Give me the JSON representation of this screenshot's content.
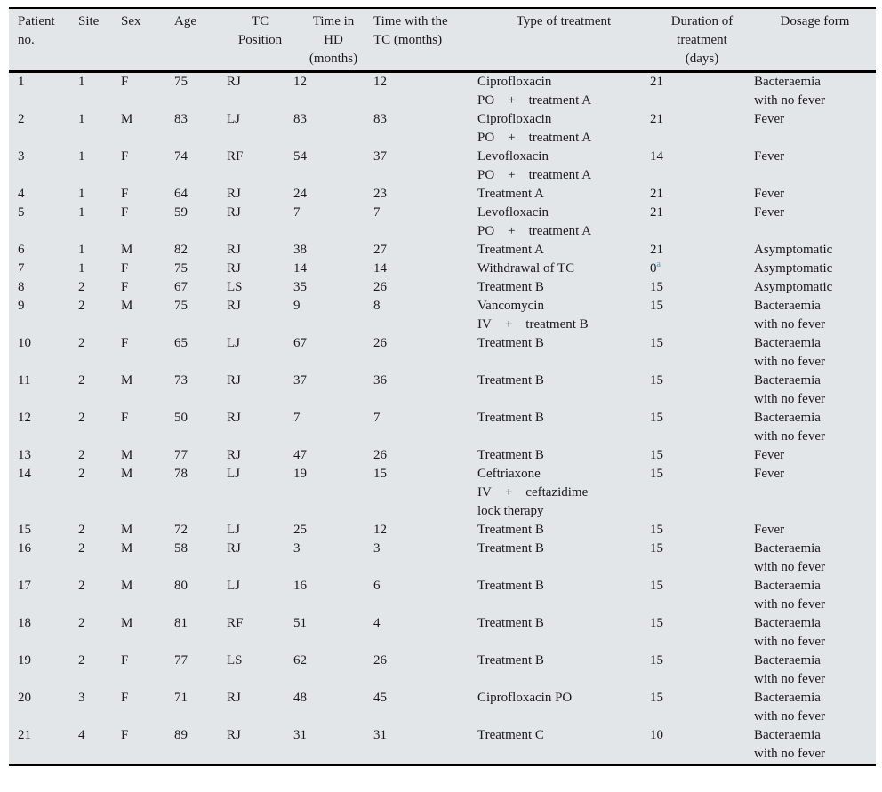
{
  "colors": {
    "table_background": "#e2e6e9",
    "rule": "#000000",
    "text": "#1a1a1a",
    "footnote_accent": "#4aa0c8"
  },
  "table": {
    "columns": [
      {
        "key": "patient_no",
        "header_lines": [
          "Patient",
          "no."
        ],
        "header_align": "left"
      },
      {
        "key": "site",
        "header_lines": [
          "Site"
        ],
        "header_align": "left"
      },
      {
        "key": "sex",
        "header_lines": [
          "Sex"
        ],
        "header_align": "left"
      },
      {
        "key": "age",
        "header_lines": [
          "Age"
        ],
        "header_align": "left"
      },
      {
        "key": "tc_position",
        "header_lines": [
          "TC",
          "Position"
        ],
        "header_align": "center"
      },
      {
        "key": "time_in_hd",
        "header_lines": [
          "Time in",
          "HD",
          "(months)"
        ],
        "header_align": "center"
      },
      {
        "key": "time_with_tc",
        "header_lines": [
          "Time with the",
          "TC (months)"
        ],
        "header_align": "left"
      },
      {
        "key": "treatment",
        "header_lines": [
          "Type of treatment"
        ],
        "header_align": "center"
      },
      {
        "key": "duration",
        "header_lines": [
          "Duration of",
          "treatment",
          "(days)"
        ],
        "header_align": "center"
      },
      {
        "key": "dosage",
        "header_lines": [
          "Dosage form"
        ],
        "header_align": "center"
      }
    ],
    "rows": [
      {
        "patient_no": "1",
        "site": "1",
        "sex": "F",
        "age": "75",
        "tc_position": "RJ",
        "time_in_hd": "12",
        "time_with_tc": "12",
        "treatment": [
          "Ciprofloxacin",
          "PO + treatment A"
        ],
        "duration": "21",
        "dosage": [
          "Bacteraemia",
          "with no fever"
        ]
      },
      {
        "patient_no": "2",
        "site": "1",
        "sex": "M",
        "age": "83",
        "tc_position": "LJ",
        "time_in_hd": "83",
        "time_with_tc": "83",
        "treatment": [
          "Ciprofloxacin",
          "PO + treatment A"
        ],
        "duration": "21",
        "dosage": "Fever"
      },
      {
        "patient_no": "3",
        "site": "1",
        "sex": "F",
        "age": "74",
        "tc_position": "RF",
        "time_in_hd": "54",
        "time_with_tc": "37",
        "treatment": [
          "Levofloxacin",
          "PO + treatment A"
        ],
        "duration": "14",
        "dosage": "Fever"
      },
      {
        "patient_no": "4",
        "site": "1",
        "sex": "F",
        "age": "64",
        "tc_position": "RJ",
        "time_in_hd": "24",
        "time_with_tc": "23",
        "treatment": "Treatment A",
        "duration": "21",
        "dosage": "Fever"
      },
      {
        "patient_no": "5",
        "site": "1",
        "sex": "F",
        "age": "59",
        "tc_position": "RJ",
        "time_in_hd": "7",
        "time_with_tc": "7",
        "treatment": [
          "Levofloxacin",
          "PO + treatment A"
        ],
        "duration": "21",
        "dosage": "Fever"
      },
      {
        "patient_no": "6",
        "site": "1",
        "sex": "M",
        "age": "82",
        "tc_position": "RJ",
        "time_in_hd": "38",
        "time_with_tc": "27",
        "treatment": "Treatment A",
        "duration": "21",
        "dosage": "Asymptomatic"
      },
      {
        "patient_no": "7",
        "site": "1",
        "sex": "F",
        "age": "75",
        "tc_position": "RJ",
        "time_in_hd": "14",
        "time_with_tc": "14",
        "treatment": "Withdrawal of TC",
        "duration": "0",
        "duration_sup": "a",
        "dosage": "Asymptomatic"
      },
      {
        "patient_no": "8",
        "site": "2",
        "sex": "F",
        "age": "67",
        "tc_position": "LS",
        "time_in_hd": "35",
        "time_with_tc": "26",
        "treatment": "Treatment B",
        "duration": "15",
        "dosage": "Asymptomatic"
      },
      {
        "patient_no": "9",
        "site": "2",
        "sex": "M",
        "age": "75",
        "tc_position": "RJ",
        "time_in_hd": "9",
        "time_with_tc": "8",
        "treatment": [
          "Vancomycin",
          "IV + treatment B"
        ],
        "duration": "15",
        "dosage": [
          "Bacteraemia",
          "with no fever"
        ]
      },
      {
        "patient_no": "10",
        "site": "2",
        "sex": "F",
        "age": "65",
        "tc_position": "LJ",
        "time_in_hd": "67",
        "time_with_tc": "26",
        "treatment": "Treatment B",
        "duration": "15",
        "dosage": [
          "Bacteraemia",
          "with no fever"
        ]
      },
      {
        "patient_no": "11",
        "site": "2",
        "sex": "M",
        "age": "73",
        "tc_position": "RJ",
        "time_in_hd": "37",
        "time_with_tc": "36",
        "treatment": "Treatment B",
        "duration": "15",
        "dosage": [
          "Bacteraemia",
          "with no fever"
        ]
      },
      {
        "patient_no": "12",
        "site": "2",
        "sex": "F",
        "age": "50",
        "tc_position": "RJ",
        "time_in_hd": "7",
        "time_with_tc": "7",
        "treatment": "Treatment B",
        "duration": "15",
        "dosage": [
          "Bacteraemia",
          "with no fever"
        ]
      },
      {
        "patient_no": "13",
        "site": "2",
        "sex": "M",
        "age": "77",
        "tc_position": "RJ",
        "time_in_hd": "47",
        "time_with_tc": "26",
        "treatment": "Treatment B",
        "duration": "15",
        "dosage": "Fever"
      },
      {
        "patient_no": "14",
        "site": "2",
        "sex": "M",
        "age": "78",
        "tc_position": "LJ",
        "time_in_hd": "19",
        "time_with_tc": "15",
        "treatment": [
          "Ceftriaxone",
          "IV + ceftazidime",
          "lock therapy"
        ],
        "duration": "15",
        "dosage": "Fever"
      },
      {
        "patient_no": "15",
        "site": "2",
        "sex": "M",
        "age": "72",
        "tc_position": "LJ",
        "time_in_hd": "25",
        "time_with_tc": "12",
        "treatment": "Treatment B",
        "duration": "15",
        "dosage": "Fever"
      },
      {
        "patient_no": "16",
        "site": "2",
        "sex": "M",
        "age": "58",
        "tc_position": "RJ",
        "time_in_hd": "3",
        "time_with_tc": "3",
        "treatment": "Treatment B",
        "duration": "15",
        "dosage": [
          "Bacteraemia",
          "with no fever"
        ]
      },
      {
        "patient_no": "17",
        "site": "2",
        "sex": "M",
        "age": "80",
        "tc_position": "LJ",
        "time_in_hd": "16",
        "time_with_tc": "6",
        "treatment": "Treatment B",
        "duration": "15",
        "dosage": [
          "Bacteraemia",
          "with no fever"
        ]
      },
      {
        "patient_no": "18",
        "site": "2",
        "sex": "M",
        "age": "81",
        "tc_position": "RF",
        "time_in_hd": "51",
        "time_with_tc": "4",
        "treatment": "Treatment B",
        "duration": "15",
        "dosage": [
          "Bacteraemia",
          "with no fever"
        ]
      },
      {
        "patient_no": "19",
        "site": "2",
        "sex": "F",
        "age": "77",
        "tc_position": "LS",
        "time_in_hd": "62",
        "time_with_tc": "26",
        "treatment": "Treatment B",
        "duration": "15",
        "dosage": [
          "Bacteraemia",
          "with no fever"
        ]
      },
      {
        "patient_no": "20",
        "site": "3",
        "sex": "F",
        "age": "71",
        "tc_position": "RJ",
        "time_in_hd": "48",
        "time_with_tc": "45",
        "treatment": "Ciprofloxacin PO",
        "duration": "15",
        "dosage": [
          "Bacteraemia",
          "with no fever"
        ]
      },
      {
        "patient_no": "21",
        "site": "4",
        "sex": "F",
        "age": "89",
        "tc_position": "RJ",
        "time_in_hd": "31",
        "time_with_tc": "31",
        "treatment": "Treatment C",
        "duration": "10",
        "dosage": [
          "Bacteraemia",
          "with no fever"
        ]
      }
    ]
  }
}
